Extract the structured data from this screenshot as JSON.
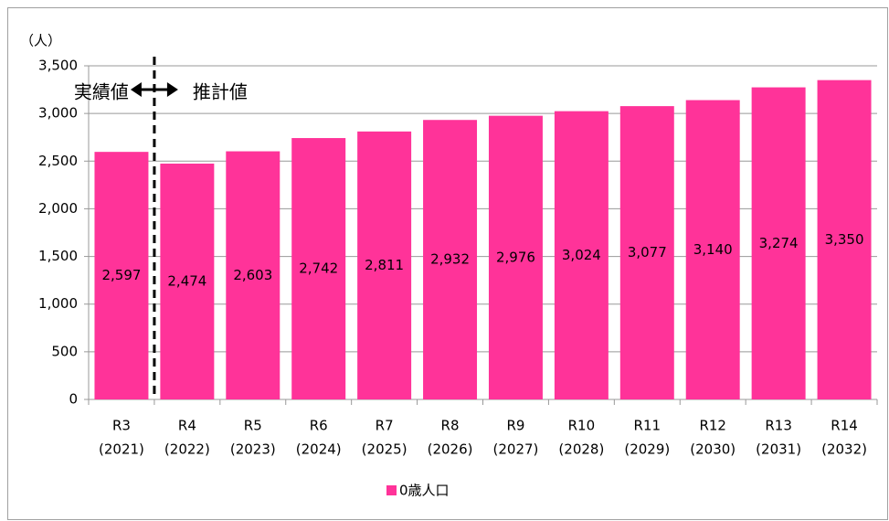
{
  "chart_data": {
    "type": "bar",
    "y_unit_label": "（人）",
    "annotations": {
      "actual": "実績値",
      "estimate": "推計値"
    },
    "categories": [
      [
        "R3",
        "(2021)"
      ],
      [
        "R4",
        "(2022)"
      ],
      [
        "R5",
        "(2023)"
      ],
      [
        "R6",
        "(2024)"
      ],
      [
        "R7",
        "(2025)"
      ],
      [
        "R8",
        "(2026)"
      ],
      [
        "R9",
        "(2027)"
      ],
      [
        "R10",
        "(2028)"
      ],
      [
        "R11",
        "(2029)"
      ],
      [
        "R12",
        "(2030)"
      ],
      [
        "R13",
        "(2031)"
      ],
      [
        "R14",
        "(2032)"
      ]
    ],
    "series": [
      {
        "name": "0歳人口",
        "color": "#ff3399",
        "values": [
          2597,
          2474,
          2603,
          2742,
          2811,
          2932,
          2976,
          3024,
          3077,
          3140,
          3274,
          3350
        ],
        "value_labels": [
          "2,597",
          "2,474",
          "2,603",
          "2,742",
          "2,811",
          "2,932",
          "2,976",
          "3,024",
          "3,077",
          "3,140",
          "3,274",
          "3,350"
        ]
      }
    ],
    "ylim": [
      0,
      3500
    ],
    "yticks": [
      0,
      500,
      {
        "value": 1000,
        "label": "1,000"
      },
      {
        "value": 1500,
        "label": "1,500"
      },
      {
        "value": 2000,
        "label": "2,000"
      },
      {
        "value": 2500,
        "label": "2,500"
      },
      {
        "value": 3000,
        "label": "3,000"
      },
      {
        "value": 3500,
        "label": "3,500"
      }
    ],
    "grid": true,
    "legend": "bottom"
  }
}
